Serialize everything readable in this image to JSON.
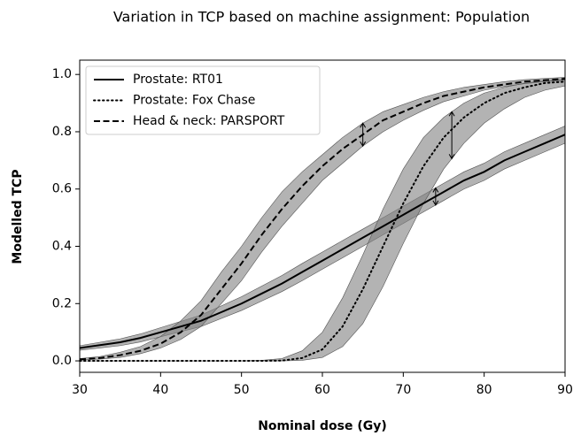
{
  "chart_data": {
    "type": "line",
    "title": "Variation in TCP based on machine assignment: Population",
    "x_label": "Nominal dose (Gy)",
    "y_label": "Modelled TCP",
    "x": [
      30,
      32.5,
      35,
      37.5,
      40,
      42.5,
      45,
      47.5,
      50,
      52.5,
      55,
      57.5,
      60,
      62.5,
      65,
      67.5,
      70,
      72.5,
      75,
      77.5,
      80,
      82.5,
      85,
      87.5,
      90
    ],
    "series": [
      {
        "name": "Prostate: RT01",
        "color": "#000000",
        "style": "solid",
        "band_color": "#808080",
        "arrow_x": 74,
        "values": [
          0.045,
          0.055,
          0.065,
          0.08,
          0.1,
          0.12,
          0.14,
          0.17,
          0.2,
          0.235,
          0.27,
          0.31,
          0.35,
          0.39,
          0.43,
          0.47,
          0.51,
          0.55,
          0.59,
          0.63,
          0.66,
          0.7,
          0.73,
          0.76,
          0.79
        ],
        "lower": [
          0.037,
          0.045,
          0.053,
          0.066,
          0.084,
          0.102,
          0.12,
          0.148,
          0.176,
          0.209,
          0.242,
          0.28,
          0.32,
          0.36,
          0.4,
          0.44,
          0.48,
          0.52,
          0.56,
          0.6,
          0.63,
          0.67,
          0.7,
          0.73,
          0.76
        ],
        "upper": [
          0.053,
          0.065,
          0.077,
          0.094,
          0.116,
          0.138,
          0.16,
          0.192,
          0.224,
          0.261,
          0.298,
          0.34,
          0.38,
          0.42,
          0.46,
          0.5,
          0.54,
          0.58,
          0.62,
          0.66,
          0.69,
          0.73,
          0.76,
          0.79,
          0.82
        ]
      },
      {
        "name": "Prostate: Fox Chase",
        "color": "#000000",
        "style": "dotted",
        "band_color": "#808080",
        "arrow_x": 76,
        "values": [
          0,
          0,
          0,
          0,
          0,
          0,
          0,
          0,
          0,
          0,
          0.001,
          0.01,
          0.04,
          0.12,
          0.25,
          0.4,
          0.55,
          0.68,
          0.78,
          0.85,
          0.9,
          0.935,
          0.955,
          0.97,
          0.975
        ],
        "lower": [
          0,
          0,
          0,
          0,
          0,
          0,
          0,
          0,
          0,
          0,
          0,
          0.002,
          0.012,
          0.05,
          0.13,
          0.26,
          0.41,
          0.55,
          0.67,
          0.76,
          0.83,
          0.88,
          0.92,
          0.945,
          0.96
        ],
        "upper": [
          0,
          0,
          0,
          0,
          0,
          0,
          0,
          0,
          0,
          0.002,
          0.008,
          0.035,
          0.1,
          0.22,
          0.37,
          0.53,
          0.67,
          0.78,
          0.85,
          0.9,
          0.935,
          0.955,
          0.97,
          0.978,
          0.983
        ]
      },
      {
        "name": "Head & neck: PARSPORT",
        "color": "#000000",
        "style": "dashed",
        "band_color": "#808080",
        "arrow_x": 65,
        "values": [
          0.005,
          0.01,
          0.02,
          0.035,
          0.06,
          0.1,
          0.16,
          0.25,
          0.34,
          0.44,
          0.53,
          0.61,
          0.68,
          0.74,
          0.79,
          0.84,
          0.87,
          0.9,
          0.925,
          0.94,
          0.955,
          0.965,
          0.975,
          0.98,
          0.985
        ],
        "lower": [
          0.003,
          0.006,
          0.012,
          0.025,
          0.045,
          0.075,
          0.12,
          0.2,
          0.28,
          0.38,
          0.47,
          0.55,
          0.63,
          0.69,
          0.75,
          0.8,
          0.84,
          0.875,
          0.905,
          0.925,
          0.945,
          0.958,
          0.968,
          0.975,
          0.98
        ],
        "upper": [
          0.008,
          0.015,
          0.03,
          0.05,
          0.085,
          0.14,
          0.21,
          0.31,
          0.4,
          0.5,
          0.59,
          0.66,
          0.72,
          0.78,
          0.83,
          0.87,
          0.895,
          0.92,
          0.94,
          0.955,
          0.965,
          0.975,
          0.982,
          0.986,
          0.99
        ]
      }
    ],
    "xlim": [
      30,
      90
    ],
    "ylim": [
      -0.04,
      1.05
    ],
    "xticks": [
      30,
      40,
      50,
      60,
      70,
      80,
      90
    ],
    "yticks": [
      {
        "value": 0,
        "label": "0.0"
      },
      0.2,
      0.4,
      0.6,
      0.8,
      {
        "value": 1,
        "label": "1.0"
      }
    ],
    "legend": "upper left",
    "grid": false
  }
}
